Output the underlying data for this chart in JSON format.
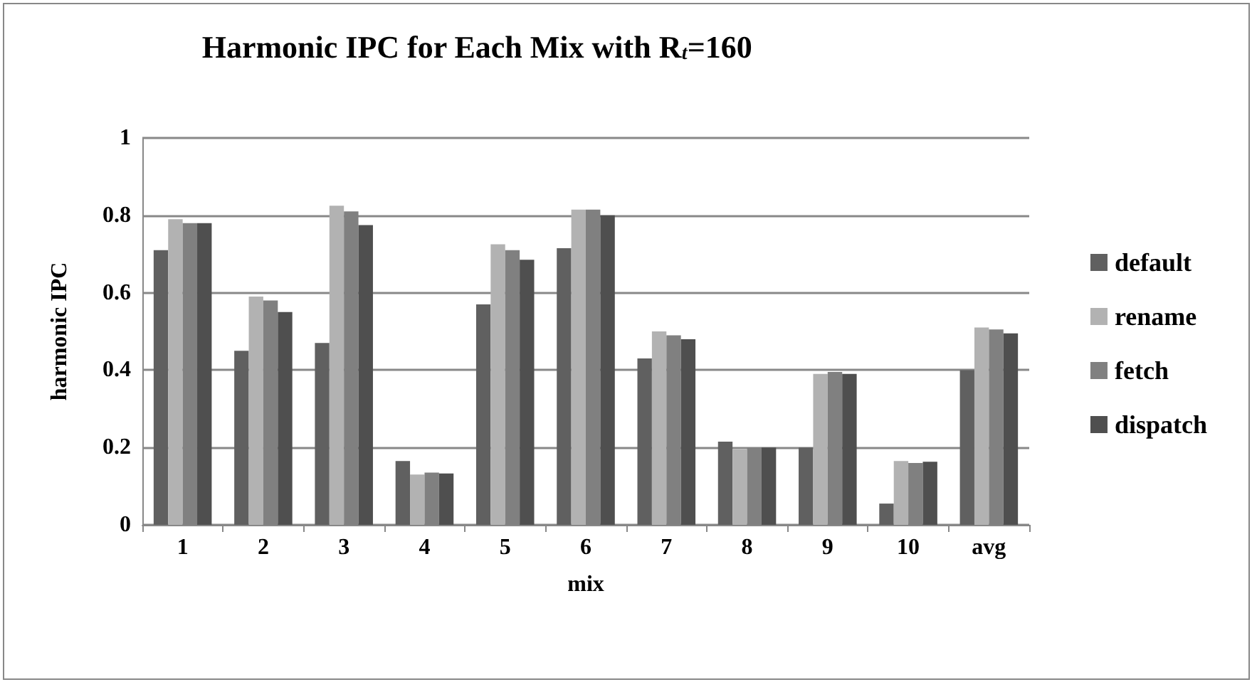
{
  "chart_data": {
    "type": "bar",
    "title": "Harmonic IPC for Each Mix with R$_{t}$=160",
    "xlabel": "mix",
    "ylabel": "harmonic IPC",
    "categories": [
      "1",
      "2",
      "3",
      "4",
      "5",
      "6",
      "7",
      "8",
      "9",
      "10",
      "avg"
    ],
    "series": [
      {
        "name": "default",
        "color": "#606060",
        "values": [
          0.71,
          0.45,
          0.47,
          0.165,
          0.57,
          0.715,
          0.43,
          0.215,
          0.2,
          0.055,
          0.4
        ]
      },
      {
        "name": "rename",
        "color": "#b2b2b2",
        "values": [
          0.79,
          0.59,
          0.825,
          0.13,
          0.725,
          0.815,
          0.5,
          0.195,
          0.39,
          0.165,
          0.51
        ]
      },
      {
        "name": "fetch",
        "color": "#808080",
        "values": [
          0.78,
          0.58,
          0.81,
          0.135,
          0.71,
          0.815,
          0.49,
          0.2,
          0.395,
          0.16,
          0.505
        ]
      },
      {
        "name": "dispatch",
        "color": "#4f4f4f",
        "values": [
          0.78,
          0.55,
          0.775,
          0.133,
          0.685,
          0.8,
          0.48,
          0.2,
          0.39,
          0.163,
          0.495
        ]
      }
    ],
    "ylim": [
      0,
      1
    ],
    "yticks": [
      0,
      0.2,
      0.4,
      0.6,
      0.8,
      1
    ],
    "grid": "y",
    "legend": "right"
  }
}
